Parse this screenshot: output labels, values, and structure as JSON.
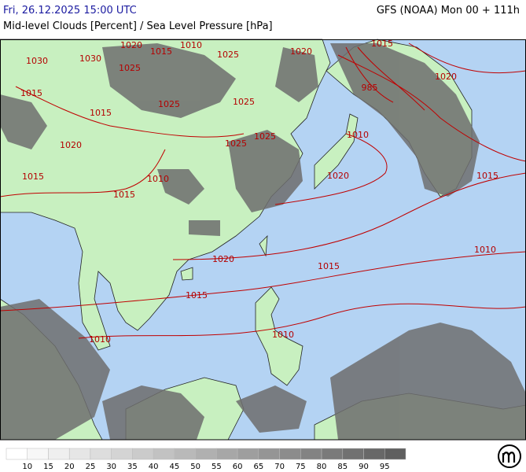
{
  "header": {
    "left": "Fri, 26.12.2025 15:00 UTC",
    "right": "GFS (NOAA) Mon 00 + 111h",
    "subtitle": "Mid-level Clouds [Percent] / Sea Level Pressure [hPa]"
  },
  "isobar_labels": [
    "1030",
    "1030",
    "1020",
    "1015",
    "1010",
    "1025",
    "1020",
    "1015",
    "1020",
    "985",
    "1015",
    "1025",
    "1025",
    "1025",
    "1025",
    "1025",
    "1020",
    "1015",
    "1015",
    "1010",
    "1010",
    "1020",
    "1015",
    "1010",
    "1020",
    "1015",
    "1015",
    "1010",
    "1010",
    "1015"
  ],
  "legend": {
    "ticks": [
      10,
      15,
      20,
      25,
      30,
      35,
      40,
      45,
      50,
      55,
      60,
      65,
      70,
      75,
      80,
      85,
      90,
      95
    ],
    "colors": [
      "#ffffff",
      "#f7f7f7",
      "#efefef",
      "#e6e6e6",
      "#dddddd",
      "#d4d4d4",
      "#cbcbcb",
      "#c2c2c2",
      "#b9b9b9",
      "#b0b0b0",
      "#a7a7a7",
      "#9e9e9e",
      "#959595",
      "#8c8c8c",
      "#838383",
      "#7a7a7a",
      "#717171",
      "#686868",
      "#5f5f5f"
    ]
  }
}
